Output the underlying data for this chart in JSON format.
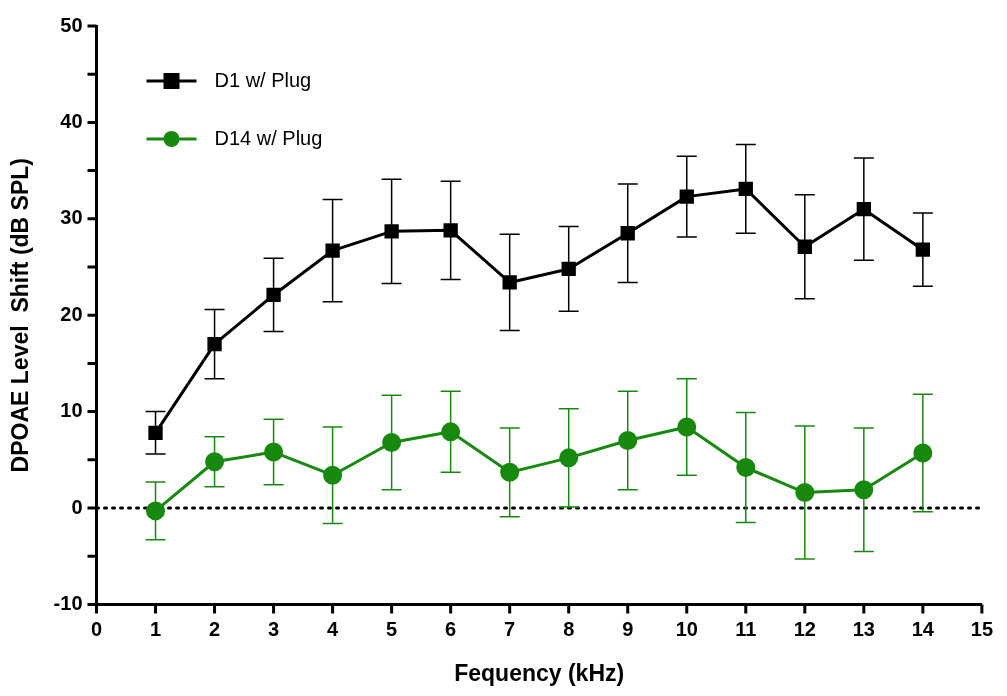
{
  "chart_data": {
    "type": "line",
    "xlabel": "Fequency (kHz)",
    "ylabel": "DPOAE Level  Shift (dB SPL)",
    "x": [
      1,
      2,
      3,
      4,
      5,
      6,
      7,
      8,
      9,
      10,
      11,
      12,
      13,
      14
    ],
    "xlim": [
      0,
      15
    ],
    "xticks": [
      0,
      1,
      2,
      3,
      4,
      5,
      6,
      7,
      8,
      9,
      10,
      11,
      12,
      13,
      14,
      15
    ],
    "ylim": [
      -10,
      50
    ],
    "yticks": [
      -10,
      {
        "value": -5,
        "label": null
      },
      0,
      {
        "value": 5,
        "label": null
      },
      10,
      {
        "value": 15,
        "label": null
      },
      20,
      {
        "value": 25,
        "label": null
      },
      30,
      {
        "value": 35,
        "label": null
      },
      40,
      {
        "value": 45,
        "label": null
      },
      50
    ],
    "grid": false,
    "legend": "top left",
    "ref_lines": [
      {
        "axis": "y",
        "value": 0,
        "line_style": "dotted",
        "color": "#000000"
      }
    ],
    "series": [
      {
        "name": "D1 w/ Plug",
        "color": "#000000",
        "marker": "square",
        "values": [
          7.8,
          17.0,
          22.1,
          26.7,
          28.7,
          28.8,
          23.4,
          24.8,
          28.5,
          32.3,
          33.1,
          27.1,
          31.0,
          26.8
        ],
        "errors": [
          2.2,
          3.6,
          3.8,
          5.3,
          5.4,
          5.1,
          5.0,
          4.4,
          5.1,
          4.2,
          4.6,
          5.4,
          5.3,
          3.8
        ]
      },
      {
        "name": "D14 w/ Plug",
        "color": "#17890f",
        "marker": "circle",
        "values": [
          -0.3,
          4.8,
          5.8,
          3.4,
          6.8,
          7.9,
          3.7,
          5.2,
          7.0,
          8.4,
          4.2,
          1.6,
          1.9,
          5.7
        ],
        "errors": [
          3.0,
          2.6,
          3.4,
          5.0,
          4.9,
          4.2,
          4.6,
          5.1,
          5.1,
          5.0,
          5.7,
          6.9,
          6.4,
          6.1
        ]
      }
    ]
  }
}
